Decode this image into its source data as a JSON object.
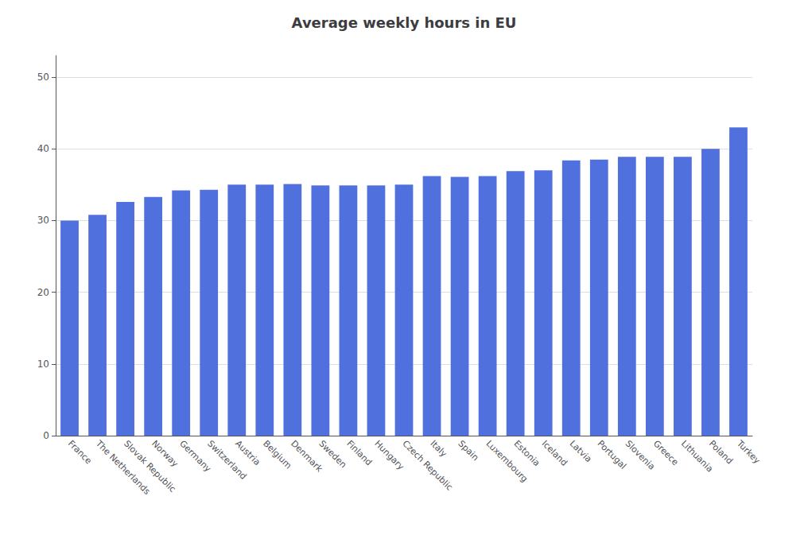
{
  "chart_data": {
    "type": "bar",
    "title": "Average weekly hours in EU",
    "categories": [
      "France",
      "The Netherlands",
      "Slovak Republic",
      "Norway",
      "Germany",
      "Switzerland",
      "Austria",
      "Belgium",
      "Denmark",
      "Sweden",
      "Finland",
      "Hungary",
      "Czech Republic",
      "Italy",
      "Spain",
      "Luxembourg",
      "Estonia",
      "Iceland",
      "Latvia",
      "Portugal",
      "Slovenia",
      "Greece",
      "Lithuania",
      "Poland",
      "Turkey"
    ],
    "values": [
      30.0,
      30.8,
      32.6,
      33.3,
      34.2,
      34.3,
      35.0,
      35.0,
      35.1,
      34.9,
      34.9,
      34.9,
      35.0,
      36.2,
      36.1,
      36.2,
      36.9,
      37.0,
      38.4,
      38.5,
      38.9,
      38.9,
      38.9,
      40.0,
      43.0
    ],
    "ylim": [
      0,
      53
    ],
    "yticks": [
      0,
      10,
      20,
      30,
      40,
      50
    ],
    "grid": true
  }
}
